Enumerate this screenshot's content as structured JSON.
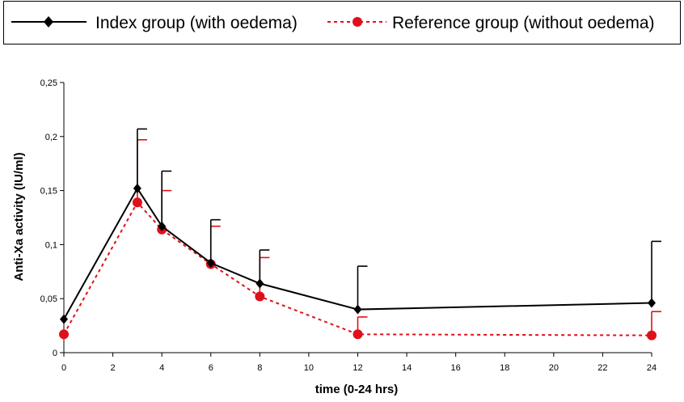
{
  "chart_data": {
    "type": "line",
    "title": "",
    "xlabel": "time (0-24 hrs)",
    "ylabel": "Anti-Xa activity (IU/ml)",
    "xlim": [
      0,
      24
    ],
    "ylim": [
      0,
      0.25
    ],
    "x_ticks": [
      0,
      2,
      4,
      6,
      8,
      10,
      12,
      14,
      16,
      18,
      20,
      22,
      24
    ],
    "x_tick_labels": [
      "0",
      "2",
      "4",
      "6",
      "8",
      "10",
      "12",
      "14",
      "16",
      "18",
      "20",
      "22",
      "24"
    ],
    "y_ticks": [
      0,
      0.05,
      0.1,
      0.15,
      0.2,
      0.25
    ],
    "y_tick_labels": [
      "0",
      "0,05",
      "0,1",
      "0,15",
      "0,2",
      "0,25"
    ],
    "grid": false,
    "legend_position": "top",
    "series": [
      {
        "name": "Index group (with oedema)",
        "color": "#000000",
        "marker": "diamond",
        "line_style": "solid",
        "x": [
          0,
          3,
          4,
          6,
          8,
          12,
          24
        ],
        "y": [
          0.031,
          0.152,
          0.117,
          0.083,
          0.064,
          0.04,
          0.046
        ],
        "error_upper": [
          0.031,
          0.207,
          0.168,
          0.123,
          0.095,
          0.08,
          0.103
        ]
      },
      {
        "name": "Reference group (without oedema)",
        "color": "#e0101a",
        "marker": "circle",
        "line_style": "dotted",
        "x": [
          0,
          3,
          4,
          6,
          8,
          12,
          24
        ],
        "y": [
          0.017,
          0.139,
          0.114,
          0.082,
          0.052,
          0.017,
          0.016
        ],
        "error_upper": [
          0.017,
          0.197,
          0.15,
          0.117,
          0.088,
          0.033,
          0.038
        ]
      }
    ]
  }
}
